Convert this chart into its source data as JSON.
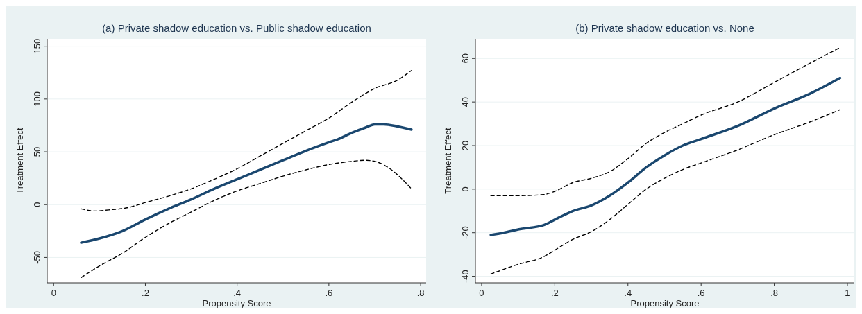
{
  "chart_data": [
    {
      "type": "line",
      "title": "(a) Private shadow education vs. Public shadow education",
      "xlabel": "Propensity Score",
      "ylabel": "Treatment Effect",
      "xlim": [
        -0.014,
        0.812
      ],
      "ylim": [
        -74,
        157
      ],
      "xticks": [
        {
          "value": 0,
          "label": "0"
        },
        {
          "value": 0.2,
          "label": ".2"
        },
        {
          "value": 0.4,
          "label": ".4"
        },
        {
          "value": 0.6,
          "label": ".6"
        },
        {
          "value": 0.8,
          "label": ".8"
        }
      ],
      "yticks": [
        -50,
        {
          "value": 0,
          "label": "0"
        },
        50,
        100,
        150
      ],
      "grid": "y",
      "series": [
        {
          "color": "#1a476f",
          "line_style": "solid",
          "x": [
            0.06,
            0.1,
            0.15,
            0.2,
            0.25,
            0.3,
            0.35,
            0.4,
            0.45,
            0.5,
            0.55,
            0.6,
            0.62,
            0.65,
            0.68,
            0.7,
            0.72,
            0.75,
            0.78
          ],
          "values": [
            -36,
            -32,
            -25,
            -14,
            -4,
            5,
            15,
            24,
            33,
            42,
            51,
            59,
            62,
            68,
            73,
            76,
            76,
            74,
            71
          ]
        },
        {
          "color": "#000000",
          "line_style": "dashed",
          "x": [
            0.06,
            0.09,
            0.12,
            0.16,
            0.2,
            0.25,
            0.3,
            0.35,
            0.4,
            0.45,
            0.5,
            0.55,
            0.6,
            0.65,
            0.7,
            0.75,
            0.78
          ],
          "values": [
            -4,
            -6,
            -5,
            -3,
            2,
            8,
            15,
            24,
            34,
            46,
            58,
            70,
            82,
            97,
            110,
            118,
            127
          ]
        },
        {
          "color": "#000000",
          "line_style": "dashed",
          "x": [
            0.06,
            0.1,
            0.15,
            0.2,
            0.25,
            0.3,
            0.35,
            0.4,
            0.45,
            0.5,
            0.55,
            0.6,
            0.65,
            0.68,
            0.7,
            0.73,
            0.76,
            0.78
          ],
          "values": [
            -69,
            -58,
            -46,
            -31,
            -18,
            -7,
            4,
            13,
            20,
            27,
            33,
            38,
            41,
            42,
            41,
            35,
            24,
            15
          ]
        }
      ]
    },
    {
      "type": "line",
      "title": "(b) Private shadow education vs. None",
      "xlabel": "Propensity Score",
      "ylabel": "Treatment Effect",
      "xlim": [
        -0.017,
        1.019
      ],
      "ylim": [
        -43,
        69
      ],
      "xticks": [
        {
          "value": 0,
          "label": "0"
        },
        {
          "value": 0.2,
          "label": ".2"
        },
        {
          "value": 0.4,
          "label": ".4"
        },
        {
          "value": 0.6,
          "label": ".6"
        },
        {
          "value": 0.8,
          "label": ".8"
        },
        1
      ],
      "yticks": [
        -40,
        -20,
        {
          "value": 0,
          "label": "0"
        },
        20,
        40,
        60
      ],
      "grid": "y",
      "series": [
        {
          "color": "#1a476f",
          "line_style": "solid",
          "x": [
            0.025,
            0.06,
            0.1,
            0.17,
            0.2,
            0.25,
            0.3,
            0.35,
            0.4,
            0.45,
            0.5,
            0.55,
            0.6,
            0.7,
            0.8,
            0.9,
            0.98
          ],
          "values": [
            -21,
            -20,
            -18.5,
            -16.5,
            -14,
            -10,
            -7.5,
            -3,
            3,
            10,
            15.5,
            20,
            23,
            29,
            37,
            44,
            51
          ]
        },
        {
          "color": "#000000",
          "line_style": "dashed",
          "x": [
            0.025,
            0.1,
            0.17,
            0.2,
            0.25,
            0.3,
            0.35,
            0.4,
            0.45,
            0.5,
            0.55,
            0.6,
            0.7,
            0.8,
            0.9,
            0.98
          ],
          "values": [
            -3,
            -3,
            -2.5,
            -1,
            3,
            5,
            8,
            14,
            21,
            26,
            30,
            34,
            40,
            49,
            58,
            65
          ]
        },
        {
          "color": "#000000",
          "line_style": "dashed",
          "x": [
            0.025,
            0.1,
            0.17,
            0.2,
            0.25,
            0.3,
            0.35,
            0.4,
            0.45,
            0.5,
            0.55,
            0.6,
            0.7,
            0.8,
            0.9,
            0.98
          ],
          "values": [
            -39,
            -34.5,
            -31,
            -28,
            -23,
            -19.5,
            -14,
            -7,
            0,
            5,
            9,
            12,
            18,
            25,
            31,
            36.5
          ]
        }
      ]
    }
  ]
}
